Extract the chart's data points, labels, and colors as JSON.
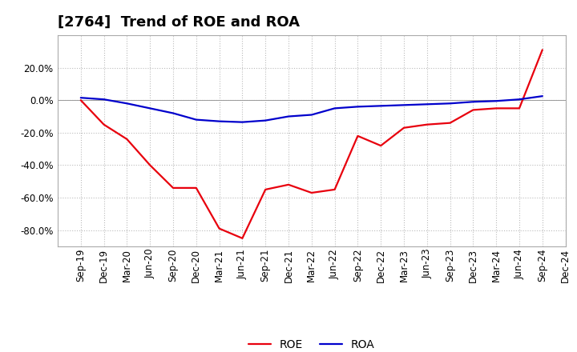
{
  "title": "[2764]  Trend of ROE and ROA",
  "x_labels": [
    "Sep-19",
    "Dec-19",
    "Mar-20",
    "Jun-20",
    "Sep-20",
    "Dec-20",
    "Mar-21",
    "Jun-21",
    "Sep-21",
    "Dec-21",
    "Mar-22",
    "Jun-22",
    "Sep-22",
    "Dec-22",
    "Mar-23",
    "Jun-23",
    "Sep-23",
    "Dec-23",
    "Mar-24",
    "Jun-24",
    "Sep-24",
    "Dec-24"
  ],
  "roe": [
    0.0,
    -15.0,
    -24.0,
    -40.0,
    -54.0,
    -54.0,
    -79.0,
    -85.0,
    -55.0,
    -52.0,
    -57.0,
    -55.0,
    -22.0,
    -28.0,
    -17.0,
    -15.0,
    -14.0,
    -6.0,
    -5.0,
    -5.0,
    31.0,
    null
  ],
  "roa": [
    1.5,
    0.5,
    -2.0,
    -5.0,
    -8.0,
    -12.0,
    -13.0,
    -13.5,
    -12.5,
    -10.0,
    -9.0,
    -5.0,
    -4.0,
    -3.5,
    -3.0,
    -2.5,
    -2.0,
    -1.0,
    -0.5,
    0.5,
    2.5,
    null
  ],
  "roe_color": "#e8000d",
  "roa_color": "#0000cc",
  "background_color": "#ffffff",
  "grid_color": "#bbbbbb",
  "ylim": [
    -90,
    40
  ],
  "yticks": [
    -80.0,
    -60.0,
    -40.0,
    -20.0,
    0.0,
    20.0
  ],
  "title_fontsize": 13,
  "legend_fontsize": 10,
  "tick_fontsize": 8.5,
  "linewidth": 1.6
}
